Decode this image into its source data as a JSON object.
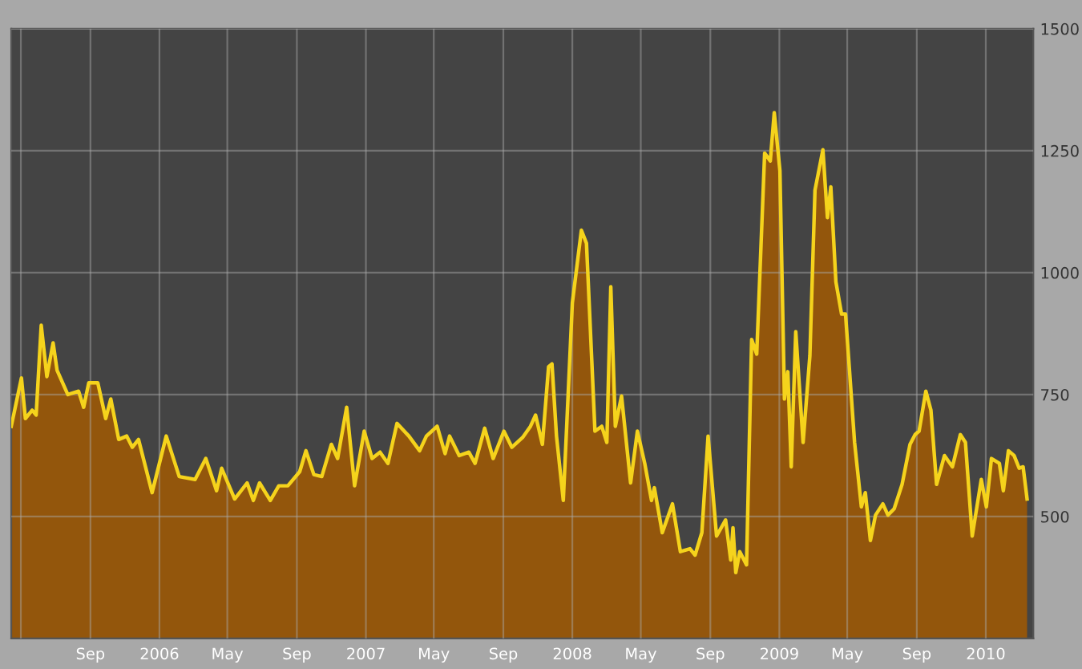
{
  "chart_data": {
    "type": "area",
    "x": [
      "2005-04-14",
      "2005-05-02",
      "2005-05-09",
      "2005-05-21",
      "2005-05-28",
      "2005-06-06",
      "2005-06-16",
      "2005-06-27",
      "2005-07-04",
      "2005-07-23",
      "2005-08-11",
      "2005-08-20",
      "2005-08-29",
      "2005-09-14",
      "2005-09-28",
      "2005-10-07",
      "2005-10-21",
      "2005-11-04",
      "2005-11-14",
      "2005-11-25",
      "2005-12-19",
      "2006-01-13",
      "2006-02-05",
      "2006-03-05",
      "2006-03-24",
      "2006-04-12",
      "2006-04-21",
      "2006-05-14",
      "2006-06-05",
      "2006-06-16",
      "2006-06-27",
      "2006-07-16",
      "2006-07-31",
      "2006-08-16",
      "2006-09-06",
      "2006-09-17",
      "2006-10-01",
      "2006-10-15",
      "2006-11-01",
      "2006-11-12",
      "2006-11-28",
      "2006-12-12",
      "2006-12-29",
      "2007-01-12",
      "2007-01-26",
      "2007-02-09",
      "2007-02-25",
      "2007-03-18",
      "2007-04-06",
      "2007-04-18",
      "2007-05-07",
      "2007-05-21",
      "2007-05-29",
      "2007-06-15",
      "2007-07-02",
      "2007-07-13",
      "2007-07-30",
      "2007-08-14",
      "2007-09-02",
      "2007-09-16",
      "2007-10-05",
      "2007-10-19",
      "2007-10-28",
      "2007-11-09",
      "2007-11-20",
      "2007-11-26",
      "2007-12-04",
      "2007-12-16",
      "2008-01-01",
      "2008-01-17",
      "2008-01-26",
      "2008-02-10",
      "2008-02-22",
      "2008-03-02",
      "2008-03-09",
      "2008-03-17",
      "2008-03-28",
      "2008-04-13",
      "2008-04-25",
      "2008-05-08",
      "2008-05-20",
      "2008-05-25",
      "2008-06-08",
      "2008-06-26",
      "2008-07-10",
      "2008-07-27",
      "2008-08-05",
      "2008-08-17",
      "2008-08-28",
      "2008-09-12",
      "2008-09-28",
      "2008-10-07",
      "2008-10-11",
      "2008-10-16",
      "2008-10-23",
      "2008-11-04",
      "2008-11-13",
      "2008-11-22",
      "2008-12-06",
      "2008-12-16",
      "2008-12-23",
      "2009-01-02",
      "2009-01-10",
      "2009-01-16",
      "2009-01-22",
      "2009-01-30",
      "2009-02-12",
      "2009-02-24",
      "2009-03-05",
      "2009-03-19",
      "2009-03-27",
      "2009-04-02",
      "2009-04-11",
      "2009-04-21",
      "2009-04-28",
      "2009-05-14",
      "2009-05-26",
      "2009-06-02",
      "2009-06-11",
      "2009-06-20",
      "2009-07-03",
      "2009-07-12",
      "2009-07-23",
      "2009-08-06",
      "2009-08-20",
      "2009-08-29",
      "2009-09-05",
      "2009-09-17",
      "2009-09-26",
      "2009-10-06",
      "2009-10-20",
      "2009-11-03",
      "2009-11-17",
      "2009-11-26",
      "2009-12-08",
      "2009-12-24",
      "2010-01-02",
      "2010-01-11",
      "2010-01-25",
      "2010-02-01",
      "2010-02-10",
      "2010-02-20",
      "2010-03-01",
      "2010-03-08",
      "2010-03-15"
    ],
    "series": [
      {
        "color": "#f5d31c",
        "values": [
          685,
          784,
          701,
          718,
          708,
          892,
          787,
          856,
          800,
          750,
          757,
          724,
          774,
          774,
          701,
          741,
          658,
          665,
          642,
          658,
          549,
          665,
          582,
          576,
          619,
          553,
          599,
          536,
          569,
          533,
          569,
          533,
          563,
          563,
          592,
          635,
          586,
          582,
          648,
          619,
          724,
          563,
          675,
          619,
          632,
          609,
          691,
          665,
          635,
          665,
          685,
          629,
          665,
          625,
          632,
          609,
          681,
          619,
          675,
          642,
          662,
          685,
          708,
          648,
          807,
          813,
          665,
          533,
          938,
          1087,
          1060,
          675,
          685,
          652,
          971,
          685,
          747,
          569,
          675,
          609,
          533,
          559,
          467,
          526,
          428,
          434,
          421,
          467,
          665,
          460,
          493,
          411,
          477,
          385,
          428,
          401,
          863,
          833,
          1245,
          1229,
          1328,
          1209,
          741,
          797,
          602,
          879,
          652,
          830,
          1169,
          1252,
          1113,
          1176,
          981,
          915,
          915,
          652,
          520,
          549,
          451,
          503,
          526,
          503,
          516,
          566,
          648,
          668,
          675,
          757,
          718,
          566,
          625,
          602,
          668,
          652,
          460,
          576,
          520,
          619,
          609,
          553,
          635,
          625,
          599,
          602,
          536
        ]
      }
    ],
    "xlim": [
      "2005-04-14",
      "2010-03-26"
    ],
    "xticks": [
      {
        "value": "2005-05-01",
        "label": null
      },
      {
        "value": "2005-09-01",
        "label": "Sep"
      },
      {
        "value": "2006-01-01",
        "label": "2006"
      },
      {
        "value": "2006-05-01",
        "label": "May"
      },
      {
        "value": "2006-09-01",
        "label": "Sep"
      },
      {
        "value": "2007-01-01",
        "label": "2007"
      },
      {
        "value": "2007-05-01",
        "label": "May"
      },
      {
        "value": "2007-09-01",
        "label": "Sep"
      },
      {
        "value": "2008-01-01",
        "label": "2008"
      },
      {
        "value": "2008-05-01",
        "label": "May"
      },
      {
        "value": "2008-09-01",
        "label": "Sep"
      },
      {
        "value": "2009-01-01",
        "label": "2009"
      },
      {
        "value": "2009-05-01",
        "label": "May"
      },
      {
        "value": "2009-09-01",
        "label": "Sep"
      },
      {
        "value": "2010-01-01",
        "label": "2010"
      }
    ],
    "ylim": [
      250,
      1500
    ],
    "yticks": [
      500,
      750,
      1000,
      1250,
      1500
    ],
    "grid": true,
    "marker": "none",
    "line_style": "solid"
  }
}
